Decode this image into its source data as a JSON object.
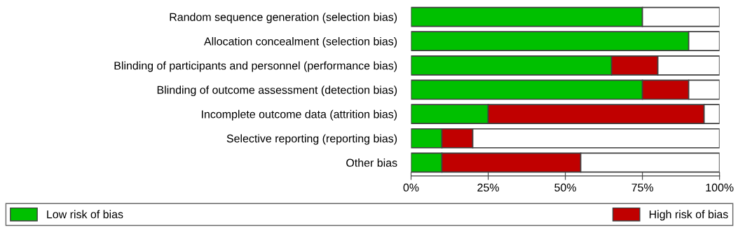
{
  "chart_data": {
    "type": "bar",
    "orientation": "horizontal",
    "stacked": true,
    "categories": [
      "Random sequence generation (selection bias)",
      "Allocation concealment (selection bias)",
      "Blinding of participants and personnel (performance bias)",
      "Blinding of outcome assessment (detection bias)",
      "Incomplete outcome data (attrition bias)",
      "Selective reporting (reporting bias)",
      "Other bias"
    ],
    "series": [
      {
        "name": "Low risk of bias",
        "color": "#00c000",
        "values": [
          75,
          90,
          65,
          75,
          25,
          10,
          10
        ]
      },
      {
        "name": "High risk of bias",
        "color": "#c00000",
        "values": [
          null,
          null,
          15,
          15,
          70,
          10,
          45
        ]
      },
      {
        "color": "#ffffff",
        "values": [
          25,
          10,
          20,
          10,
          5,
          80,
          45
        ]
      }
    ],
    "xlim": [
      0,
      100
    ],
    "xticks": [
      {
        "value": 0,
        "label": "0%"
      },
      {
        "value": 25,
        "label": "25%"
      },
      {
        "value": 50,
        "label": "50%"
      },
      {
        "value": 75,
        "label": "75%"
      },
      {
        "value": 100,
        "label": "100%"
      }
    ],
    "grid": false,
    "legend": "bottom"
  }
}
